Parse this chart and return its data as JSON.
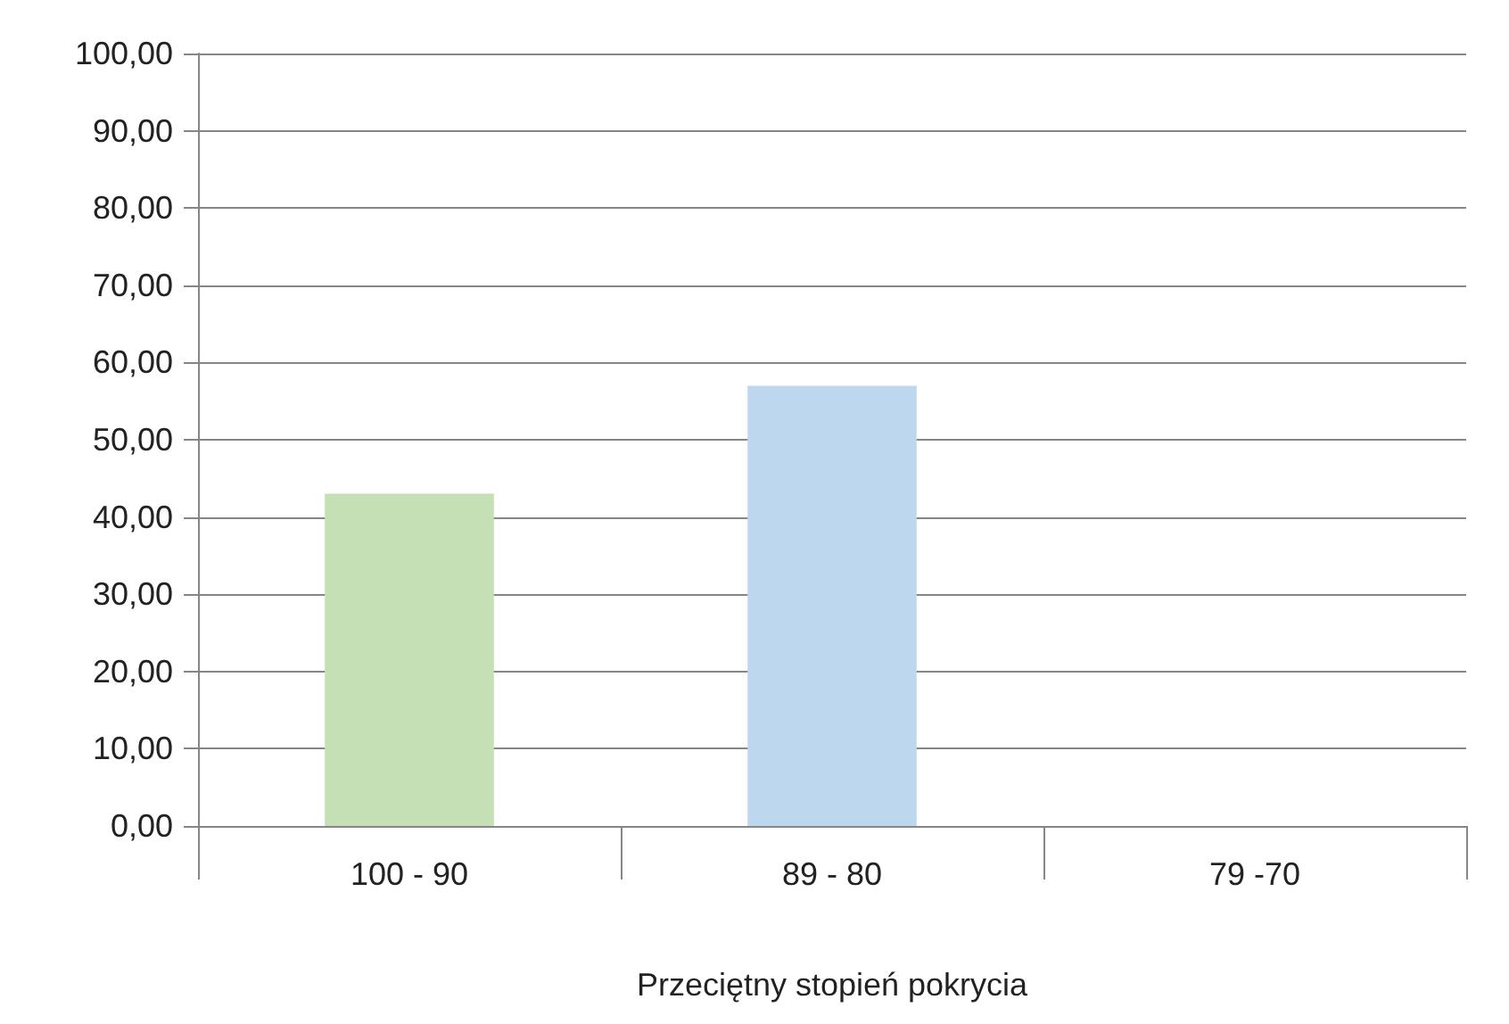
{
  "chart_data": {
    "type": "bar",
    "xlabel": "Przeciętny stopień pokrycia",
    "categories": [
      "100 - 90",
      "89 - 80",
      "79 -70"
    ],
    "values": [
      43,
      57,
      0
    ],
    "colors": [
      "#c4e0b4",
      "#bdd7ee",
      "#f8cbad"
    ],
    "ylim": [
      0,
      100
    ],
    "yticks": [
      {
        "value": 0,
        "label": "0,00"
      },
      {
        "value": 10,
        "label": "10,00"
      },
      {
        "value": 20,
        "label": "20,00"
      },
      {
        "value": 30,
        "label": "30,00"
      },
      {
        "value": 40,
        "label": "40,00"
      },
      {
        "value": 50,
        "label": "50,00"
      },
      {
        "value": 60,
        "label": "60,00"
      },
      {
        "value": 70,
        "label": "70,00"
      },
      {
        "value": 80,
        "label": "80,00"
      },
      {
        "value": 90,
        "label": "90,00"
      },
      {
        "value": 100,
        "label": "100,00"
      }
    ],
    "grid": "y"
  }
}
